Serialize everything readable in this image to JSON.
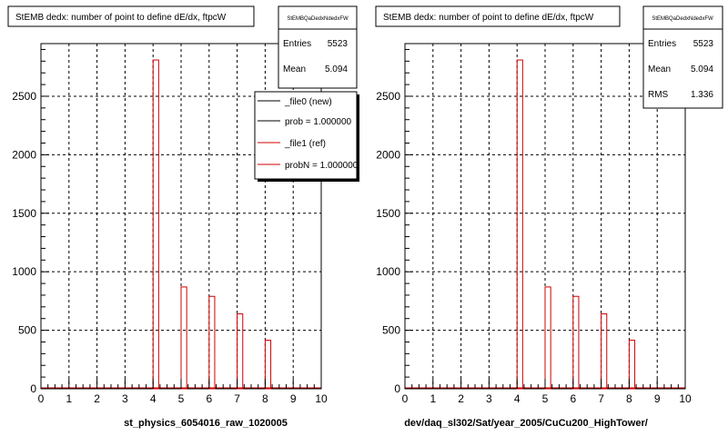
{
  "chart_data": [
    {
      "type": "bar",
      "title": "StEMB dedx: number of point to define dE/dx, ftpcW",
      "xlabel": "st_physics_6054016_raw_1020005",
      "ylabel": "",
      "xlim": [
        0,
        10
      ],
      "ylim": [
        0,
        2950
      ],
      "x_ticks": [
        "0",
        "1",
        "2",
        "3",
        "4",
        "5",
        "6",
        "7",
        "8",
        "9",
        "10"
      ],
      "y_ticks": [
        "0",
        "500",
        "1000",
        "1500",
        "2000",
        "2500"
      ],
      "grid": true,
      "stats": {
        "title": "StEMBQaDedxNdedxFW",
        "rows": [
          {
            "label": "Entries",
            "value": "5523"
          },
          {
            "label": "Mean",
            "value": "5.094"
          }
        ]
      },
      "legend": {
        "placement": "top-right",
        "entries": [
          "_file0 (new)",
          "prob = 1.000000",
          "_file1 (ref)",
          "probN = 1.000000"
        ]
      },
      "series": [
        {
          "color": "#d00000",
          "bins": [
            {
              "x": 4,
              "value": 2810
            },
            {
              "x": 5,
              "value": 870
            },
            {
              "x": 6,
              "value": 790
            },
            {
              "x": 7,
              "value": 640
            },
            {
              "x": 8,
              "value": 415
            }
          ]
        }
      ]
    },
    {
      "type": "bar",
      "title": "StEMB dedx: number of point to define dE/dx, ftpcW",
      "xlabel": "dev/daq_sl302/Sat/year_2005/CuCu200_HighTower/",
      "ylabel": "",
      "xlim": [
        0,
        10
      ],
      "ylim": [
        0,
        2950
      ],
      "x_ticks": [
        "0",
        "1",
        "2",
        "3",
        "4",
        "5",
        "6",
        "7",
        "8",
        "9",
        "10"
      ],
      "y_ticks": [
        "0",
        "500",
        "1000",
        "1500",
        "2000",
        "2500"
      ],
      "grid": true,
      "stats": {
        "title": "StEMBQaDedxNdedxFW",
        "rows": [
          {
            "label": "Entries",
            "value": "5523"
          },
          {
            "label": "Mean",
            "value": "5.094"
          },
          {
            "label": "RMS",
            "value": "1.336"
          }
        ]
      },
      "series": [
        {
          "color": "#d00000",
          "bins": [
            {
              "x": 4,
              "value": 2810
            },
            {
              "x": 5,
              "value": 870
            },
            {
              "x": 6,
              "value": 790
            },
            {
              "x": 7,
              "value": 640
            },
            {
              "x": 8,
              "value": 415
            }
          ]
        }
      ]
    }
  ]
}
